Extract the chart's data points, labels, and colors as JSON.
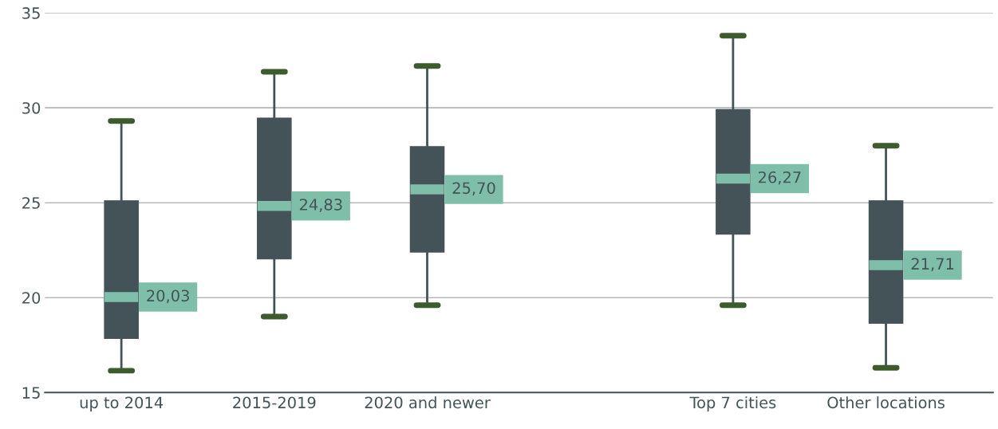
{
  "chart_data": {
    "type": "box",
    "categories": [
      "up to 2014",
      "2015-2019",
      "2020 and newer",
      null,
      "Top 7 cities",
      "Other locations"
    ],
    "series": [
      {
        "color": "#435357",
        "boxes": [
          {
            "low": 16.15,
            "q1": 17.85,
            "median": 20.03,
            "q3": 25.1,
            "high": 29.3
          },
          {
            "low": 19.0,
            "q1": 22.05,
            "median": 24.83,
            "q3": 29.45,
            "high": 31.9
          },
          {
            "low": 19.6,
            "q1": 22.4,
            "median": 25.7,
            "q3": 27.95,
            "high": 32.2
          },
          null,
          {
            "low": 19.6,
            "q1": 23.35,
            "median": 26.27,
            "q3": 29.9,
            "high": 33.8
          },
          {
            "low": 16.3,
            "q1": 18.65,
            "median": 21.71,
            "q3": 25.1,
            "high": 28.0
          }
        ],
        "value_labels": [
          "20,03",
          "24,83",
          "25,70",
          null,
          "26,27",
          "21,71"
        ]
      }
    ],
    "ylim": [
      15,
      35
    ],
    "yticks": [
      15,
      20,
      25,
      30,
      35
    ],
    "grid": "y"
  }
}
